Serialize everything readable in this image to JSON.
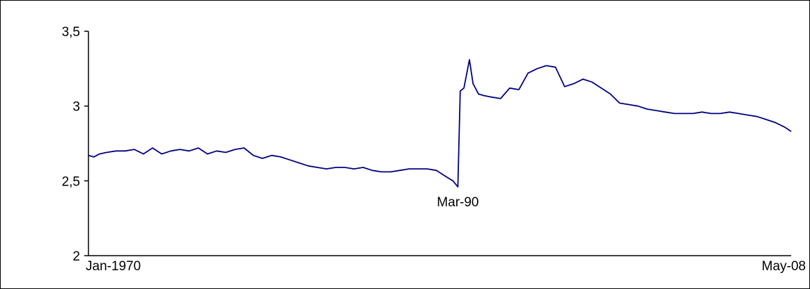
{
  "chart_data": {
    "type": "line",
    "title": "",
    "xlabel": "",
    "ylabel": "",
    "x_start": "Jan-1970",
    "x_end": "May-08",
    "x_tick_labels": [
      "Jan-1970",
      "May-08"
    ],
    "y_ticks": [
      {
        "value": 2,
        "label": "2"
      },
      {
        "value": 2.5,
        "label": "2,5"
      },
      {
        "value": 3,
        "label": "3"
      },
      {
        "value": 3.5,
        "label": "3,5"
      }
    ],
    "ylim": [
      2,
      3.5
    ],
    "grid": false,
    "legend": "none",
    "series": [
      {
        "color": "#000080",
        "x": [
          1970.0,
          1970.3,
          1970.6,
          1971.0,
          1971.5,
          1972.0,
          1972.5,
          1973.0,
          1973.5,
          1974.0,
          1974.5,
          1975.0,
          1975.5,
          1976.0,
          1976.5,
          1977.0,
          1977.5,
          1978.0,
          1978.5,
          1979.0,
          1979.5,
          1980.0,
          1980.5,
          1981.0,
          1981.5,
          1982.0,
          1982.5,
          1983.0,
          1983.5,
          1984.0,
          1984.5,
          1985.0,
          1985.5,
          1986.0,
          1986.5,
          1987.0,
          1987.5,
          1988.0,
          1988.5,
          1989.0,
          1989.5,
          1989.9,
          1990.17,
          1990.3,
          1990.5,
          1990.8,
          1991.0,
          1991.3,
          1991.6,
          1992.0,
          1992.5,
          1993.0,
          1993.5,
          1994.0,
          1994.5,
          1995.0,
          1995.5,
          1996.0,
          1996.5,
          1997.0,
          1997.5,
          1998.0,
          1998.5,
          1999.0,
          1999.5,
          2000.0,
          2000.5,
          2001.0,
          2001.5,
          2002.0,
          2002.5,
          2003.0,
          2003.5,
          2004.0,
          2004.5,
          2005.0,
          2005.5,
          2006.0,
          2006.5,
          2007.0,
          2007.5,
          2008.0,
          2008.37
        ],
        "y": [
          2.67,
          2.66,
          2.68,
          2.69,
          2.7,
          2.7,
          2.71,
          2.68,
          2.72,
          2.68,
          2.7,
          2.71,
          2.7,
          2.72,
          2.68,
          2.7,
          2.69,
          2.71,
          2.72,
          2.67,
          2.65,
          2.67,
          2.66,
          2.64,
          2.62,
          2.6,
          2.59,
          2.58,
          2.59,
          2.59,
          2.58,
          2.59,
          2.57,
          2.56,
          2.56,
          2.57,
          2.58,
          2.58,
          2.58,
          2.57,
          2.53,
          2.5,
          2.46,
          3.1,
          3.12,
          3.31,
          3.15,
          3.08,
          3.07,
          3.06,
          3.05,
          3.12,
          3.11,
          3.22,
          3.25,
          3.27,
          3.26,
          3.13,
          3.15,
          3.18,
          3.16,
          3.12,
          3.08,
          3.02,
          3.01,
          3.0,
          2.98,
          2.97,
          2.96,
          2.95,
          2.95,
          2.95,
          2.96,
          2.95,
          2.95,
          2.96,
          2.95,
          2.94,
          2.93,
          2.91,
          2.89,
          2.86,
          2.83
        ]
      }
    ],
    "annotations": [
      {
        "text": "Mar-90",
        "x": 1990.17,
        "y": 2.46
      }
    ]
  }
}
